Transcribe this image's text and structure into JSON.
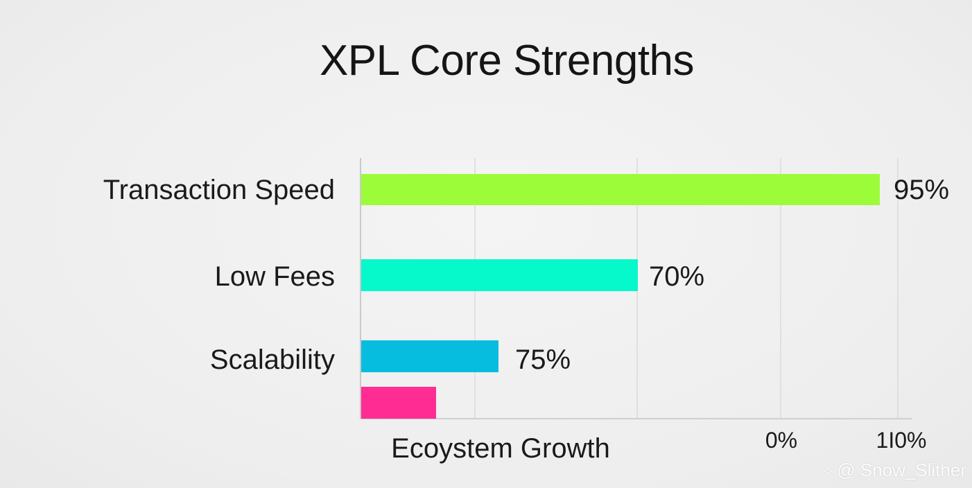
{
  "chart_data": {
    "type": "bar",
    "orientation": "horizontal",
    "title": "XPL Core Strengths",
    "xlabel": "Ecoystem Growth",
    "ylabel": "",
    "categories": [
      "Transaction Speed",
      "Low Fees",
      "Scalability",
      ""
    ],
    "values": [
      95,
      70,
      75,
      null
    ],
    "value_labels": [
      "95%",
      "70%",
      "75%",
      ""
    ],
    "bar_colors": [
      "#9dfc3a",
      "#06f9cb",
      "#06bde0",
      "#ff2d93"
    ],
    "x_tick_labels": [
      "0%",
      "1I0%"
    ],
    "grid": true,
    "legend": "none"
  },
  "watermark": {
    "icon": "binance-logo-icon",
    "text": "@ Snow_Slither"
  }
}
